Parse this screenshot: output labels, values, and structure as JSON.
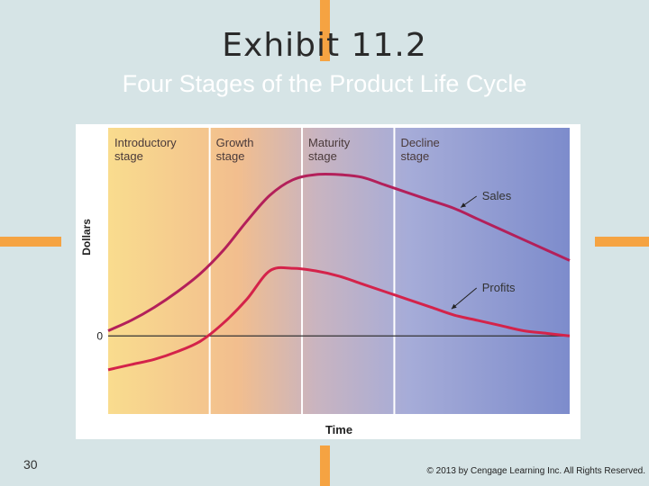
{
  "slide": {
    "title": "Exhibit 11.2",
    "subtitle": "Four Stages of the Product Life Cycle",
    "page_number": "30",
    "copyright": "© 2013 by Cengage Learning Inc. All Rights Reserved."
  },
  "colors": {
    "background": "#d6e4e6",
    "accent": "#f5a342",
    "sales_line": "#b3205a",
    "profits_line": "#d4234a",
    "intro_shade": "#f9dc8e",
    "decline_shade": "#7d8ccc"
  },
  "chart_data": {
    "type": "line",
    "title": "",
    "xlabel": "Time",
    "ylabel": "Dollars",
    "y_tick_labels": [
      "0"
    ],
    "stages": [
      "Introductory stage",
      "Growth stage",
      "Maturity stage",
      "Decline stage"
    ],
    "stage_labels": [
      [
        "Introductory",
        "stage"
      ],
      [
        "Growth",
        "stage"
      ],
      [
        "Maturity",
        "stage"
      ],
      [
        "Decline",
        "stage"
      ]
    ],
    "stage_boundaries": [
      0,
      0.22,
      0.42,
      0.62,
      1.0
    ],
    "series": [
      {
        "name": "Sales",
        "x": [
          0.0,
          0.05,
          0.1,
          0.15,
          0.2,
          0.25,
          0.3,
          0.35,
          0.4,
          0.45,
          0.5,
          0.55,
          0.6,
          0.65,
          0.7,
          0.75,
          0.8,
          0.85,
          0.9,
          0.95,
          1.0
        ],
        "values": [
          2,
          6,
          11,
          17,
          24,
          33,
          44,
          54,
          60,
          62,
          62,
          61,
          58,
          55,
          52,
          49,
          45,
          41,
          37,
          33,
          29
        ]
      },
      {
        "name": "Profits",
        "x": [
          0.0,
          0.05,
          0.1,
          0.15,
          0.2,
          0.25,
          0.3,
          0.35,
          0.4,
          0.45,
          0.5,
          0.55,
          0.6,
          0.65,
          0.7,
          0.75,
          0.8,
          0.85,
          0.9,
          0.95,
          1.0
        ],
        "values": [
          -13,
          -11,
          -9,
          -6,
          -2,
          5,
          14,
          25,
          26,
          25,
          23,
          20,
          17,
          14,
          11,
          8,
          6,
          4,
          2,
          1,
          0
        ]
      }
    ],
    "ylim": [
      -30,
      80
    ],
    "grid": false,
    "legend": "inline labels with arrows"
  }
}
